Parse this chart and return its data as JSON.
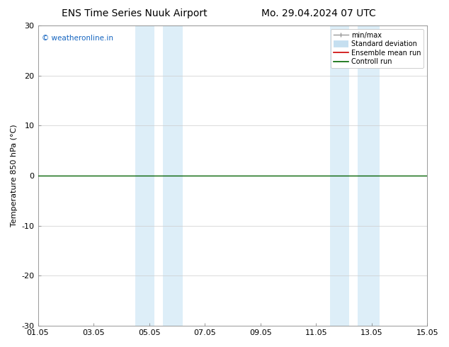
{
  "title_left": "ENS Time Series Nuuk Airport",
  "title_right": "Mo. 29.04.2024 07 UTC",
  "ylabel": "Temperature 850 hPa (°C)",
  "ylim": [
    -30,
    30
  ],
  "yticks": [
    -30,
    -20,
    -10,
    0,
    10,
    20,
    30
  ],
  "xtick_labels": [
    "01.05",
    "03.05",
    "05.05",
    "07.05",
    "09.05",
    "11.05",
    "13.05",
    "15.05"
  ],
  "xtick_positions": [
    0,
    2,
    4,
    6,
    8,
    10,
    12,
    14
  ],
  "shaded_bands": [
    {
      "x_start": 3.5,
      "x_end": 4.2,
      "color": "#ddeef8"
    },
    {
      "x_start": 4.5,
      "x_end": 5.2,
      "color": "#ddeef8"
    },
    {
      "x_start": 10.5,
      "x_end": 11.2,
      "color": "#ddeef8"
    },
    {
      "x_start": 11.5,
      "x_end": 12.3,
      "color": "#ddeef8"
    }
  ],
  "line_y_value": 0.0,
  "ensemble_line_color": "#cc0000",
  "control_line_color": "#006600",
  "watermark_text": "© weatheronline.in",
  "watermark_color": "#1565c0",
  "bg_color": "#ffffff",
  "grid_color": "#cccccc",
  "title_fontsize": 10,
  "axis_fontsize": 8,
  "tick_fontsize": 8,
  "legend_fontsize": 7
}
